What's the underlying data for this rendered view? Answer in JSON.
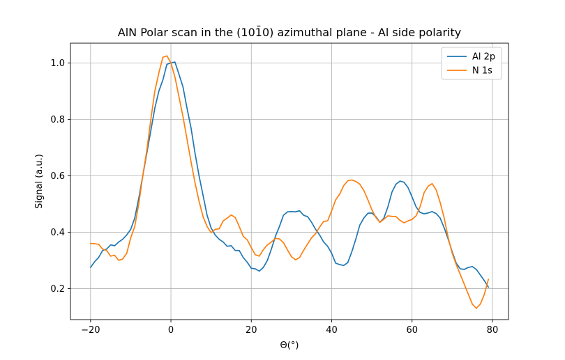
{
  "chart_data": {
    "type": "line",
    "title": "AlN Polar scan in the (10$\\bar{1}$0) azimuthal plane - Al side polarity",
    "title_display": "AlN Polar scan in the (101̄0) azimuthal plane - Al side polarity",
    "xlabel": "Θ(°)",
    "ylabel": "Signal (a.u.)",
    "xlim": [
      -25,
      84
    ],
    "ylim": [
      0.09,
      1.07
    ],
    "xticks": [
      -20,
      0,
      20,
      40,
      60,
      80
    ],
    "xtick_labels": [
      "−20",
      "0",
      "20",
      "40",
      "60",
      "80"
    ],
    "yticks": [
      0.2,
      0.4,
      0.6,
      0.8,
      1.0
    ],
    "ytick_labels": [
      "0.2",
      "0.4",
      "0.6",
      "0.8",
      "1.0"
    ],
    "grid": true,
    "legend_position": "top-right",
    "series": [
      {
        "name": "Al 2p",
        "color": "#1f77b4",
        "x": [
          -20,
          -19,
          -18,
          -17,
          -16,
          -15,
          -14,
          -13,
          -12,
          -11,
          -10,
          -9,
          -8,
          -7,
          -6,
          -5,
          -4,
          -3,
          -2,
          -1,
          0,
          1,
          2,
          3,
          4,
          5,
          6,
          7,
          8,
          9,
          10,
          11,
          12,
          13,
          14,
          15,
          16,
          17,
          18,
          19,
          20,
          21,
          22,
          23,
          24,
          25,
          26,
          27,
          28,
          29,
          30,
          31,
          32,
          33,
          34,
          35,
          36,
          37,
          38,
          39,
          40,
          41,
          42,
          43,
          44,
          45,
          46,
          47,
          48,
          49,
          50,
          51,
          52,
          53,
          54,
          55,
          56,
          57,
          58,
          59,
          60,
          61,
          62,
          63,
          64,
          65,
          66,
          67,
          68,
          69,
          70,
          71,
          72,
          73,
          74,
          75,
          76,
          77,
          78,
          79
        ],
        "y": [
          0.275,
          0.295,
          0.31,
          0.335,
          0.34,
          0.355,
          0.352,
          0.365,
          0.375,
          0.39,
          0.41,
          0.45,
          0.52,
          0.6,
          0.68,
          0.76,
          0.84,
          0.9,
          0.94,
          0.995,
          1.0,
          1.003,
          0.96,
          0.915,
          0.84,
          0.77,
          0.68,
          0.6,
          0.53,
          0.46,
          0.415,
          0.39,
          0.375,
          0.365,
          0.35,
          0.352,
          0.335,
          0.335,
          0.31,
          0.293,
          0.272,
          0.27,
          0.262,
          0.275,
          0.3,
          0.34,
          0.385,
          0.42,
          0.46,
          0.472,
          0.473,
          0.472,
          0.476,
          0.46,
          0.455,
          0.435,
          0.41,
          0.39,
          0.365,
          0.35,
          0.325,
          0.29,
          0.285,
          0.282,
          0.292,
          0.33,
          0.375,
          0.425,
          0.45,
          0.467,
          0.468,
          0.455,
          0.435,
          0.45,
          0.49,
          0.542,
          0.57,
          0.581,
          0.577,
          0.558,
          0.525,
          0.49,
          0.47,
          0.465,
          0.468,
          0.473,
          0.466,
          0.45,
          0.415,
          0.375,
          0.33,
          0.29,
          0.27,
          0.268,
          0.275,
          0.278,
          0.268,
          0.248,
          0.228,
          0.205
        ]
      },
      {
        "name": "N 1s",
        "color": "#ff7f0e",
        "x": [
          -20,
          -19,
          -18,
          -17,
          -16,
          -15,
          -14,
          -13,
          -12,
          -11,
          -10,
          -9,
          -8,
          -7,
          -6,
          -5,
          -4,
          -3,
          -2,
          -1,
          0,
          1,
          2,
          3,
          4,
          5,
          6,
          7,
          8,
          9,
          10,
          11,
          12,
          13,
          14,
          15,
          16,
          17,
          18,
          19,
          20,
          21,
          22,
          23,
          24,
          25,
          26,
          27,
          28,
          29,
          30,
          31,
          32,
          33,
          34,
          35,
          36,
          37,
          38,
          39,
          40,
          41,
          42,
          43,
          44,
          45,
          46,
          47,
          48,
          49,
          50,
          51,
          52,
          53,
          54,
          55,
          56,
          57,
          58,
          59,
          60,
          61,
          62,
          63,
          64,
          65,
          66,
          67,
          68,
          69,
          70,
          71,
          72,
          73,
          74,
          75,
          76,
          77,
          78,
          79
        ],
        "y": [
          0.36,
          0.359,
          0.357,
          0.34,
          0.335,
          0.315,
          0.318,
          0.3,
          0.305,
          0.325,
          0.38,
          0.42,
          0.5,
          0.6,
          0.69,
          0.8,
          0.9,
          0.965,
          1.02,
          1.025,
          1.0,
          0.95,
          0.88,
          0.81,
          0.73,
          0.65,
          0.575,
          0.51,
          0.455,
          0.42,
          0.398,
          0.41,
          0.412,
          0.44,
          0.45,
          0.461,
          0.452,
          0.42,
          0.385,
          0.373,
          0.345,
          0.32,
          0.315,
          0.338,
          0.355,
          0.365,
          0.378,
          0.376,
          0.363,
          0.337,
          0.313,
          0.302,
          0.31,
          0.335,
          0.358,
          0.38,
          0.395,
          0.418,
          0.438,
          0.44,
          0.476,
          0.515,
          0.535,
          0.565,
          0.582,
          0.585,
          0.58,
          0.57,
          0.548,
          0.515,
          0.48,
          0.452,
          0.435,
          0.446,
          0.458,
          0.456,
          0.455,
          0.442,
          0.433,
          0.44,
          0.445,
          0.458,
          0.49,
          0.54,
          0.563,
          0.572,
          0.55,
          0.505,
          0.45,
          0.38,
          0.325,
          0.285,
          0.25,
          0.215,
          0.18,
          0.145,
          0.13,
          0.145,
          0.18,
          0.233
        ]
      }
    ]
  }
}
